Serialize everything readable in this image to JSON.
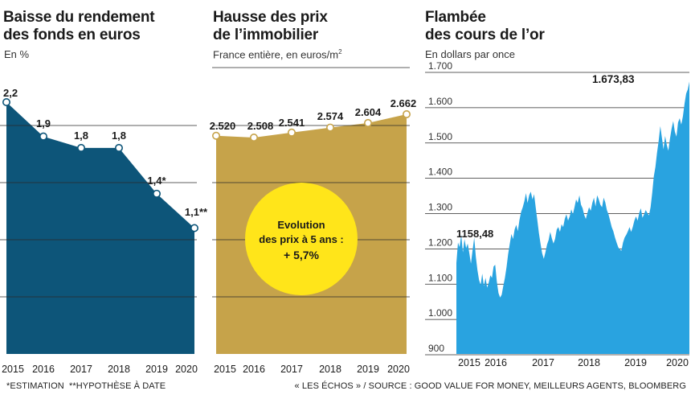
{
  "panels": {
    "p1": {
      "title": [
        "Baisse du rendement",
        "des fonds en euros"
      ],
      "subtitle": "En %"
    },
    "p2": {
      "title": [
        "Hausse des prix",
        "de l’immobilier"
      ],
      "subtitle": "France entière, en euros/m",
      "subtitle_sup": "2"
    },
    "p3": {
      "title": [
        "Flambée",
        "des cours de l’or"
      ],
      "subtitle": "En dollars par once"
    }
  },
  "footer": {
    "left_1": "*ESTIMATION",
    "left_2": "**HYPOTHÈSE À DATE",
    "right": "« LES ÉCHOS » / SOURCE : GOOD VALUE FOR MONEY, MEILLEURS AGENTS, BLOOMBERG"
  },
  "colors": {
    "rendement": "#0d5579",
    "immobilier": "#c6a34a",
    "or": "#29a3e0",
    "bubble": "#ffe51a",
    "grid": "#2a2a2a"
  },
  "chart_data": [
    {
      "type": "area",
      "x": [
        "2015",
        "2016",
        "2017",
        "2018",
        "2019",
        "2020"
      ],
      "values": [
        2.2,
        1.9,
        1.8,
        1.8,
        1.4,
        1.1
      ],
      "labels": [
        "2,2",
        "1,9",
        "1,8",
        "1,8",
        "1,4*",
        "1,1**"
      ],
      "ylim": [
        0,
        2.4
      ],
      "grid": true
    },
    {
      "type": "area",
      "x": [
        "2015",
        "2016",
        "2017",
        "2018",
        "2019",
        "2020"
      ],
      "values": [
        2520,
        2508,
        2541,
        2574,
        2604,
        2662
      ],
      "labels": [
        "2.520",
        "2.508",
        "2.541",
        "2.574",
        "2.604",
        "2.662"
      ],
      "grid": true,
      "annotation": [
        "Evolution",
        "des prix à 5 ans :",
        "+ 5,7%"
      ]
    },
    {
      "type": "area",
      "x_ticks": [
        "2015",
        "2016",
        "2017",
        "2018",
        "2019",
        "2020"
      ],
      "y_ticks": [
        "1.700",
        "1.600",
        "1.500",
        "1.400",
        "1.300",
        "1.200",
        "1.100",
        "1.000",
        "900"
      ],
      "ylim": [
        900,
        1700
      ],
      "grid": true,
      "start_label": "1158,48",
      "end_label": "1.673,83",
      "values": [
        1160,
        1218,
        1205,
        1240,
        1190,
        1228,
        1202,
        1215,
        1188,
        1158,
        1195,
        1232,
        1178,
        1140,
        1112,
        1098,
        1130,
        1095,
        1118,
        1090,
        1105,
        1125,
        1118,
        1150,
        1155,
        1108,
        1075,
        1062,
        1070,
        1095,
        1118,
        1148,
        1185,
        1215,
        1242,
        1228,
        1255,
        1268,
        1250,
        1282,
        1305,
        1318,
        1335,
        1358,
        1330,
        1352,
        1362,
        1340,
        1355,
        1318,
        1282,
        1245,
        1215,
        1188,
        1172,
        1190,
        1212,
        1225,
        1248,
        1230,
        1215,
        1228,
        1255,
        1262,
        1248,
        1270,
        1262,
        1285,
        1298,
        1280,
        1292,
        1312,
        1298,
        1318,
        1340,
        1330,
        1352,
        1325,
        1315,
        1296,
        1285,
        1302,
        1318,
        1308,
        1330,
        1345,
        1320,
        1352,
        1340,
        1325,
        1318,
        1345,
        1332,
        1310,
        1298,
        1280,
        1262,
        1250,
        1232,
        1218,
        1205,
        1198,
        1195,
        1218,
        1232,
        1240,
        1250,
        1262,
        1248,
        1262,
        1280,
        1292,
        1280,
        1302,
        1315,
        1288,
        1298,
        1310,
        1302,
        1295,
        1318,
        1358,
        1405,
        1432,
        1472,
        1505,
        1548,
        1515,
        1482,
        1520,
        1495,
        1478,
        1512,
        1540,
        1562,
        1532,
        1518,
        1558,
        1570,
        1552,
        1575,
        1612,
        1640,
        1652,
        1674
      ]
    }
  ]
}
